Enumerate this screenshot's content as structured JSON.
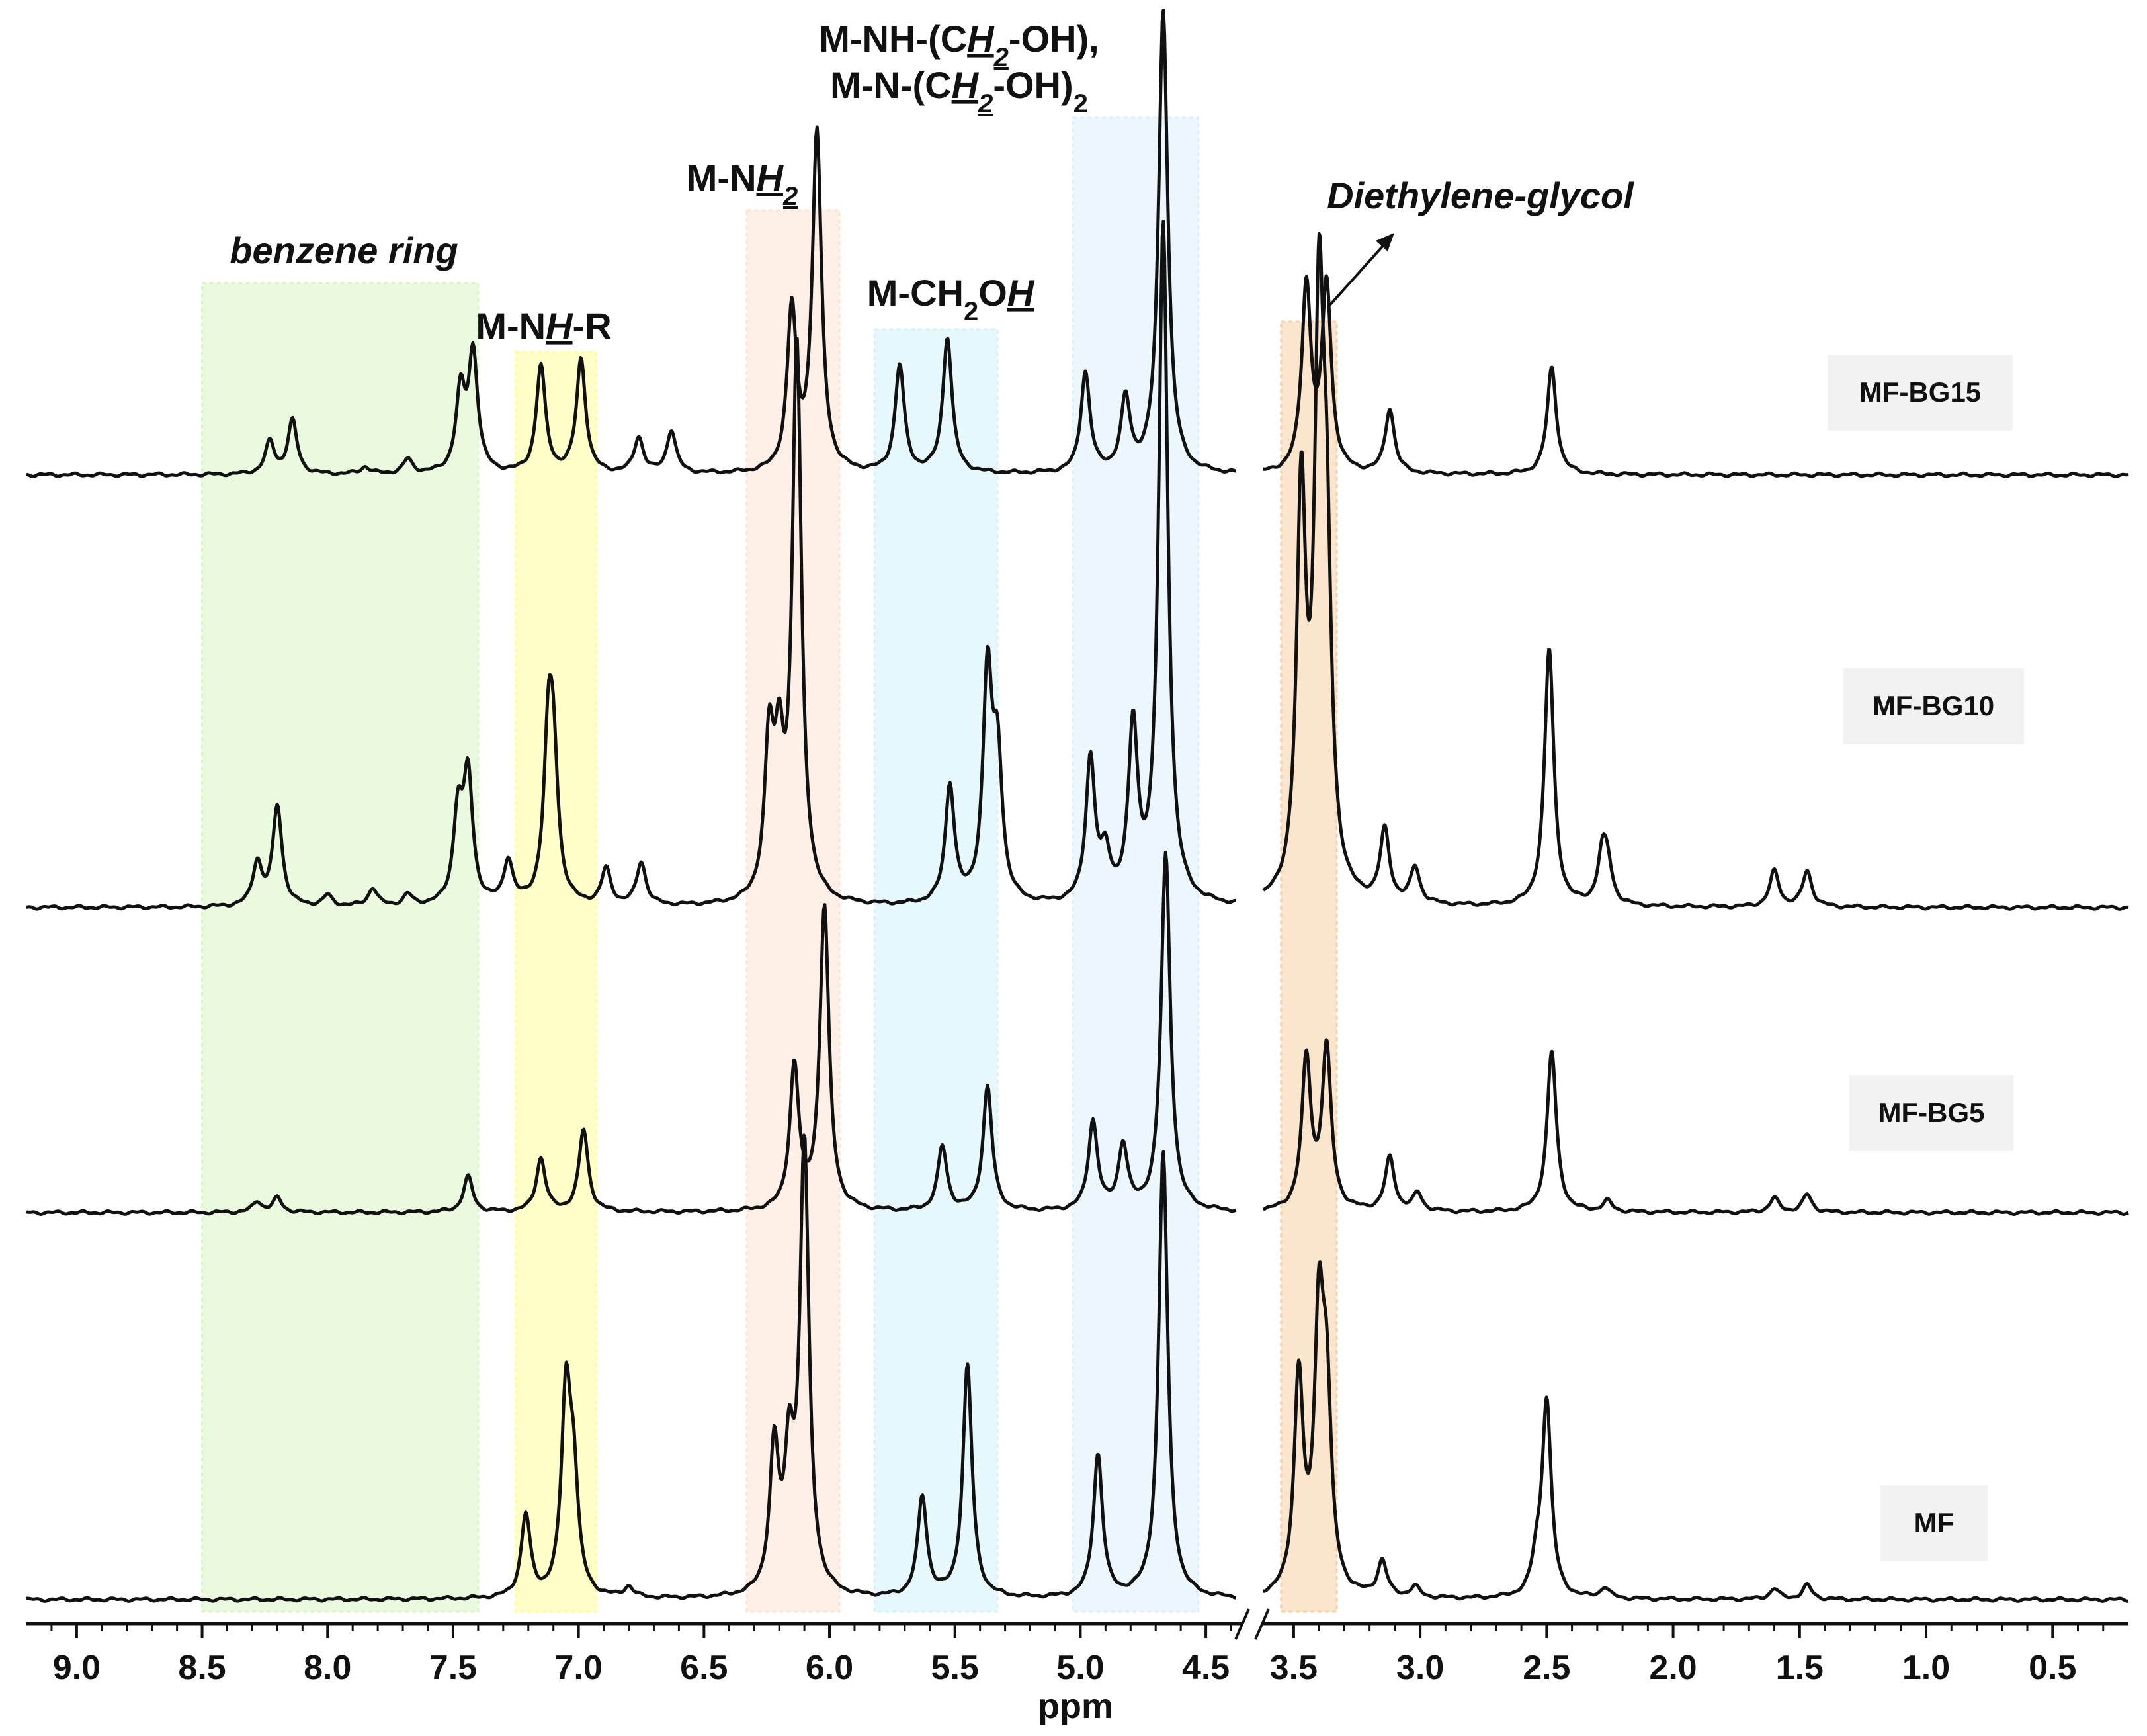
{
  "chart_data": {
    "type": "line",
    "xlabel": "ppm",
    "x_reversed": true,
    "axis_break": [
      4.5,
      3.5
    ],
    "tick_labels": [
      "9.0",
      "8.5",
      "8.0",
      "7.5",
      "7.0",
      "6.5",
      "6.0",
      "5.5",
      "5.0",
      "4.5",
      "3.5",
      "3.0",
      "2.5",
      "2.0",
      "1.5",
      "1.0",
      "0.5"
    ],
    "regions": [
      {
        "label": "benzene ring",
        "italic": true,
        "from": 8.5,
        "to": 7.4,
        "color": "#d8f5c4"
      },
      {
        "label": "M-NH-R",
        "underlined_part": "H",
        "from": 7.25,
        "to": 6.93,
        "color": "#ffff99"
      },
      {
        "label": "M-NH2",
        "underlined_part": "H2",
        "from": 6.33,
        "to": 5.96,
        "color": "#fde4d2"
      },
      {
        "label": "M-CH2OH",
        "underlined_part": "H",
        "from": 5.82,
        "to": 5.33,
        "color": "#d2f3f8"
      },
      {
        "label": "M-NH-(CH2-OH), M-N-(CH2-OH)2",
        "underlined_part": "H2",
        "from": 5.03,
        "to": 4.53,
        "color": "#dbeefc"
      },
      {
        "label": "Diethylene-glycol",
        "italic": true,
        "from": 3.55,
        "to": 3.33,
        "color": "#f9cfa4"
      }
    ],
    "series": [
      {
        "name": "MF-BG15",
        "peaks": [
          [
            8.23,
            0.09
          ],
          [
            8.14,
            0.15
          ],
          [
            7.85,
            0.02
          ],
          [
            7.68,
            0.04
          ],
          [
            7.47,
            0.22
          ],
          [
            7.42,
            0.33
          ],
          [
            7.15,
            0.3
          ],
          [
            6.99,
            0.32
          ],
          [
            6.76,
            0.1
          ],
          [
            6.63,
            0.12
          ],
          [
            6.15,
            0.45
          ],
          [
            6.05,
            0.95
          ],
          [
            5.72,
            0.3
          ],
          [
            5.53,
            0.38
          ],
          [
            4.98,
            0.28
          ],
          [
            4.82,
            0.2
          ],
          [
            4.67,
            1.3
          ],
          [
            3.45,
            0.52
          ],
          [
            3.37,
            0.52
          ],
          [
            3.12,
            0.18
          ],
          [
            2.48,
            0.3
          ]
        ]
      },
      {
        "name": "MF-BG10",
        "peaks": [
          [
            8.28,
            0.12
          ],
          [
            8.2,
            0.28
          ],
          [
            8.0,
            0.03
          ],
          [
            7.82,
            0.05
          ],
          [
            7.68,
            0.03
          ],
          [
            7.48,
            0.25
          ],
          [
            7.44,
            0.35
          ],
          [
            7.28,
            0.12
          ],
          [
            7.12,
            0.42
          ],
          [
            7.1,
            0.35
          ],
          [
            6.89,
            0.1
          ],
          [
            6.75,
            0.12
          ],
          [
            6.24,
            0.42
          ],
          [
            6.2,
            0.35
          ],
          [
            6.13,
            1.55
          ],
          [
            5.52,
            0.33
          ],
          [
            5.37,
            0.63
          ],
          [
            5.33,
            0.38
          ],
          [
            4.96,
            0.4
          ],
          [
            4.9,
            0.12
          ],
          [
            4.79,
            0.48
          ],
          [
            4.67,
            1.9
          ],
          [
            3.47,
            1.1
          ],
          [
            3.4,
            1.5
          ],
          [
            3.37,
            0.8
          ],
          [
            3.14,
            0.2
          ],
          [
            3.02,
            0.1
          ],
          [
            2.49,
            0.72
          ],
          [
            2.28,
            0.13
          ],
          [
            2.26,
            0.1
          ],
          [
            1.6,
            0.1
          ],
          [
            1.47,
            0.1
          ]
        ]
      },
      {
        "name": "MF-BG5",
        "peaks": [
          [
            8.28,
            0.03
          ],
          [
            8.2,
            0.04
          ],
          [
            7.44,
            0.1
          ],
          [
            7.15,
            0.15
          ],
          [
            6.98,
            0.23
          ],
          [
            6.14,
            0.4
          ],
          [
            6.02,
            0.85
          ],
          [
            5.55,
            0.18
          ],
          [
            5.37,
            0.35
          ],
          [
            4.95,
            0.25
          ],
          [
            4.83,
            0.18
          ],
          [
            4.66,
            1.0
          ],
          [
            3.45,
            0.42
          ],
          [
            3.37,
            0.45
          ],
          [
            3.12,
            0.15
          ],
          [
            3.01,
            0.05
          ],
          [
            2.48,
            0.45
          ],
          [
            2.26,
            0.03
          ],
          [
            1.6,
            0.04
          ],
          [
            1.47,
            0.05
          ]
        ]
      },
      {
        "name": "MF",
        "peaks": [
          [
            7.21,
            0.23
          ],
          [
            7.05,
            0.55
          ],
          [
            7.02,
            0.3
          ],
          [
            6.8,
            0.03
          ],
          [
            6.22,
            0.4
          ],
          [
            6.16,
            0.35
          ],
          [
            6.1,
            1.25
          ],
          [
            5.63,
            0.28
          ],
          [
            5.45,
            0.65
          ],
          [
            4.93,
            0.4
          ],
          [
            4.67,
            1.25
          ],
          [
            3.48,
            0.6
          ],
          [
            3.4,
            0.72
          ],
          [
            3.37,
            0.5
          ],
          [
            3.15,
            0.1
          ],
          [
            3.02,
            0.03
          ],
          [
            2.54,
            0.08
          ],
          [
            2.5,
            0.55
          ],
          [
            2.27,
            0.03
          ],
          [
            1.6,
            0.03
          ],
          [
            1.47,
            0.04
          ]
        ]
      }
    ]
  }
}
